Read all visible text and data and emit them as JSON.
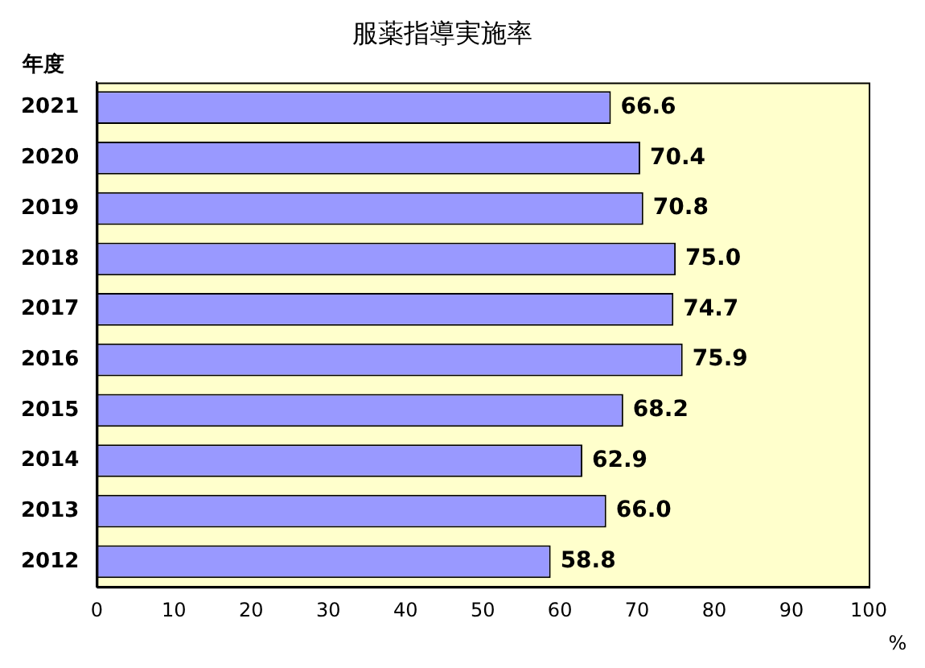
{
  "chart_data": {
    "type": "bar",
    "orientation": "horizontal",
    "title": "服薬指導実施率",
    "ylabel": "年度",
    "xlabel": "%",
    "categories": [
      "2021",
      "2020",
      "2019",
      "2018",
      "2017",
      "2016",
      "2015",
      "2014",
      "2013",
      "2012"
    ],
    "values": [
      66.6,
      70.4,
      70.8,
      75.0,
      74.7,
      75.9,
      68.2,
      62.9,
      66.0,
      58.8
    ],
    "value_labels": [
      "66.6",
      "70.4",
      "70.8",
      "75.0",
      "74.7",
      "75.9",
      "68.2",
      "62.9",
      "66.0",
      "58.8"
    ],
    "color": "#9999ff",
    "xlim": [
      0,
      100
    ],
    "xticks": [
      0,
      10,
      20,
      30,
      40,
      50,
      60,
      70,
      80,
      90,
      100
    ],
    "grid": false,
    "legend": false
  }
}
